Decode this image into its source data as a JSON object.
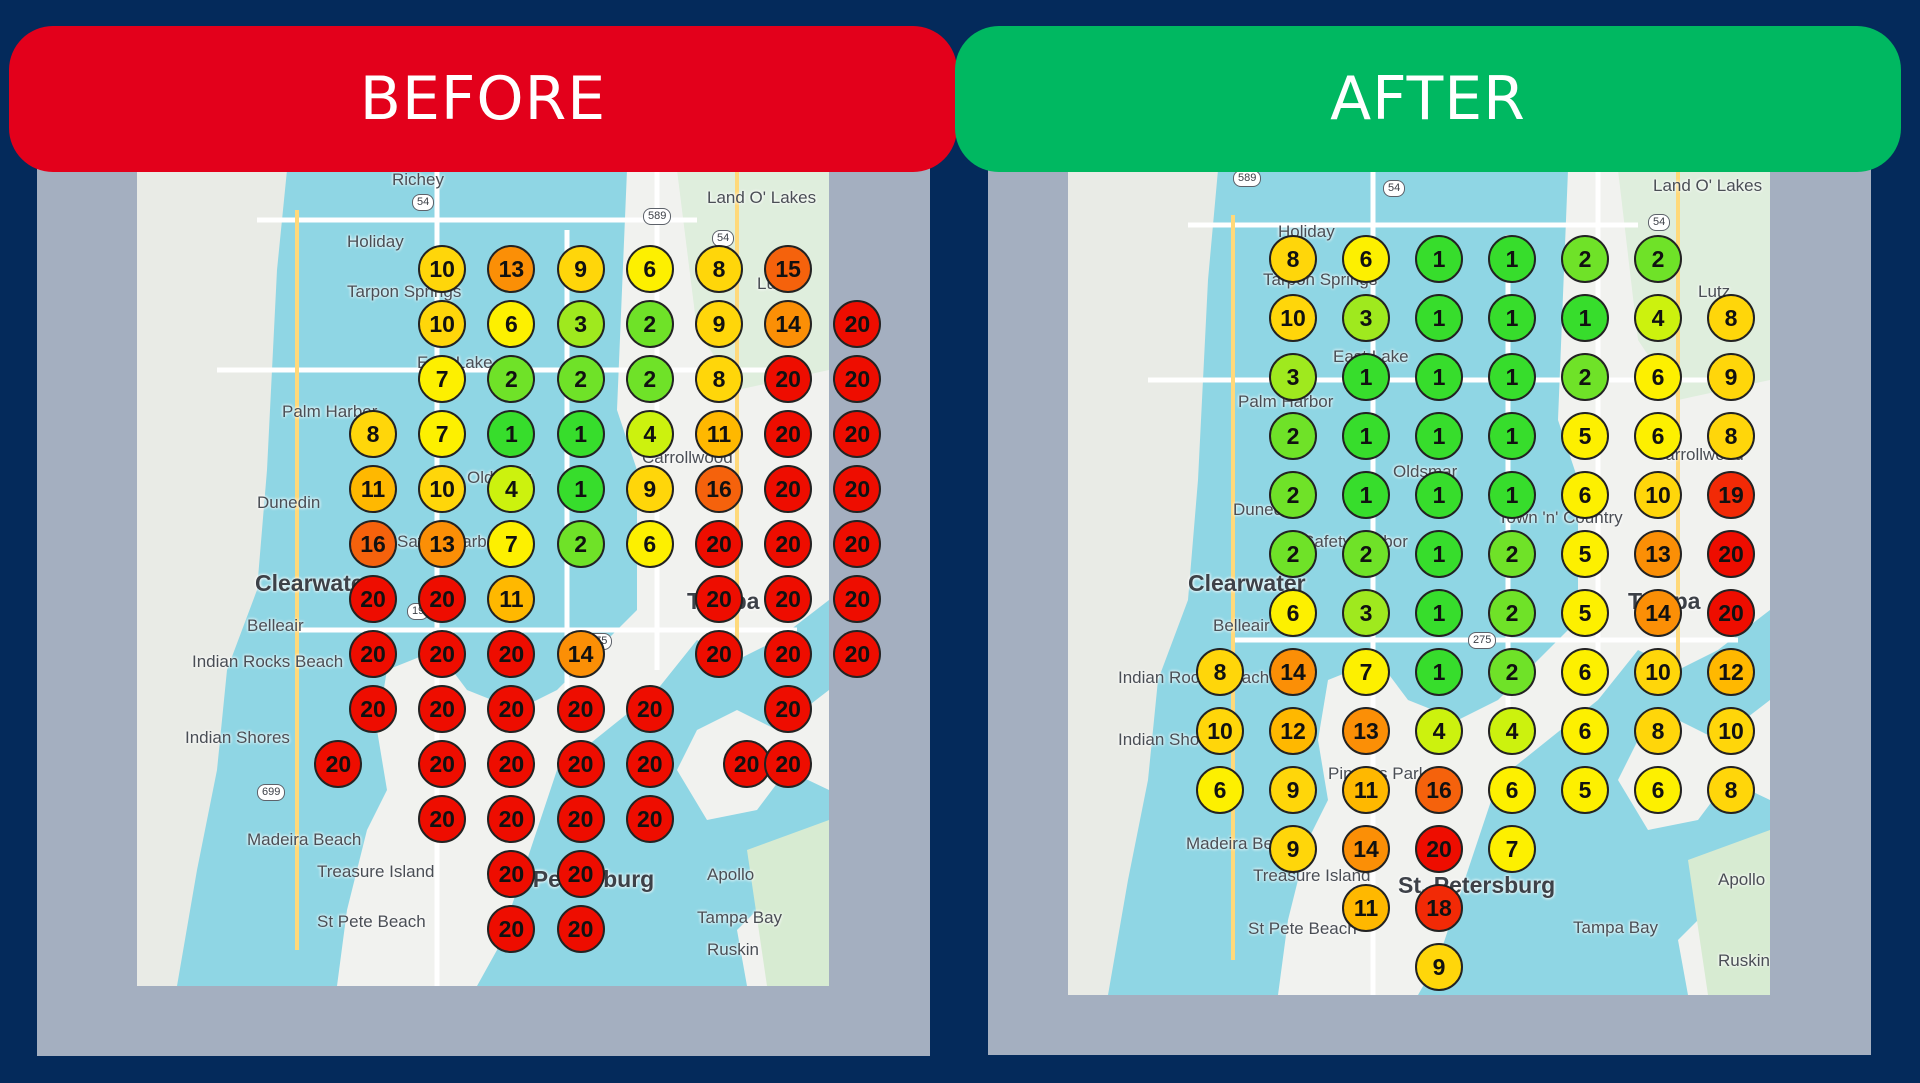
{
  "before": {
    "header": "BEFORE",
    "header_color": "#e3001b",
    "labels": [
      "Richey",
      "Land O' Lakes",
      "Holiday",
      "Tarpon Springs",
      "East Lake",
      "Palm Harbor",
      "Oldsmar",
      "Carrollwood",
      "Dunedin",
      "Safety Harbor",
      "Clearwater",
      "Tampa",
      "Belleair",
      "Indian Rocks Beach",
      "Indian Shores",
      "Madeira Beach",
      "Treasure Island",
      "St Pete Beach",
      "St. Petersburg",
      "Apollo",
      "Ruskin",
      "Tampa Bay",
      "Lutz"
    ],
    "road_badges": [
      "54",
      "589",
      "54",
      "19",
      "275",
      "699"
    ],
    "grid": [
      {
        "row": 0,
        "col": 1,
        "rank": 10
      },
      {
        "row": 0,
        "col": 2,
        "rank": 13
      },
      {
        "row": 0,
        "col": 3,
        "rank": 9
      },
      {
        "row": 0,
        "col": 4,
        "rank": 6
      },
      {
        "row": 0,
        "col": 5,
        "rank": 8
      },
      {
        "row": 0,
        "col": 6,
        "rank": 15
      },
      {
        "row": 1,
        "col": 1,
        "rank": 10
      },
      {
        "row": 1,
        "col": 2,
        "rank": 6
      },
      {
        "row": 1,
        "col": 3,
        "rank": 3
      },
      {
        "row": 1,
        "col": 4,
        "rank": 2
      },
      {
        "row": 1,
        "col": 5,
        "rank": 9
      },
      {
        "row": 1,
        "col": 6,
        "rank": 14
      },
      {
        "row": 1,
        "col": 7,
        "rank": 20
      },
      {
        "row": 2,
        "col": 1,
        "rank": 7
      },
      {
        "row": 2,
        "col": 2,
        "rank": 2
      },
      {
        "row": 2,
        "col": 3,
        "rank": 2
      },
      {
        "row": 2,
        "col": 4,
        "rank": 2
      },
      {
        "row": 2,
        "col": 5,
        "rank": 8
      },
      {
        "row": 2,
        "col": 6,
        "rank": 20
      },
      {
        "row": 2,
        "col": 7,
        "rank": 20
      },
      {
        "row": 3,
        "col": 0,
        "rank": 8
      },
      {
        "row": 3,
        "col": 1,
        "rank": 7
      },
      {
        "row": 3,
        "col": 2,
        "rank": 1
      },
      {
        "row": 3,
        "col": 3,
        "rank": 1
      },
      {
        "row": 3,
        "col": 4,
        "rank": 4
      },
      {
        "row": 3,
        "col": 5,
        "rank": 11
      },
      {
        "row": 3,
        "col": 6,
        "rank": 20
      },
      {
        "row": 3,
        "col": 7,
        "rank": 20
      },
      {
        "row": 4,
        "col": 0,
        "rank": 11
      },
      {
        "row": 4,
        "col": 1,
        "rank": 10
      },
      {
        "row": 4,
        "col": 2,
        "rank": 4
      },
      {
        "row": 4,
        "col": 3,
        "rank": 1
      },
      {
        "row": 4,
        "col": 4,
        "rank": 9
      },
      {
        "row": 4,
        "col": 5,
        "rank": 16
      },
      {
        "row": 4,
        "col": 6,
        "rank": 20
      },
      {
        "row": 4,
        "col": 7,
        "rank": 20
      },
      {
        "row": 5,
        "col": 0,
        "rank": 16
      },
      {
        "row": 5,
        "col": 1,
        "rank": 13
      },
      {
        "row": 5,
        "col": 2,
        "rank": 7
      },
      {
        "row": 5,
        "col": 3,
        "rank": 2
      },
      {
        "row": 5,
        "col": 4,
        "rank": 6
      },
      {
        "row": 5,
        "col": 5,
        "rank": 20
      },
      {
        "row": 5,
        "col": 6,
        "rank": 20
      },
      {
        "row": 5,
        "col": 7,
        "rank": 20
      },
      {
        "row": 6,
        "col": 0,
        "rank": 20
      },
      {
        "row": 6,
        "col": 1,
        "rank": 20
      },
      {
        "row": 6,
        "col": 2,
        "rank": 11
      },
      {
        "row": 6,
        "col": 5,
        "rank": 20
      },
      {
        "row": 6,
        "col": 6,
        "rank": 20
      },
      {
        "row": 6,
        "col": 7,
        "rank": 20
      },
      {
        "row": 7,
        "col": 0,
        "rank": 20
      },
      {
        "row": 7,
        "col": 1,
        "rank": 20
      },
      {
        "row": 7,
        "col": 2,
        "rank": 20
      },
      {
        "row": 7,
        "col": 3,
        "rank": 14
      },
      {
        "row": 7,
        "col": 5,
        "rank": 20
      },
      {
        "row": 7,
        "col": 6,
        "rank": 20
      },
      {
        "row": 7,
        "col": 7,
        "rank": 20
      },
      {
        "row": 8,
        "col": 0,
        "rank": 20
      },
      {
        "row": 8,
        "col": 1,
        "rank": 20
      },
      {
        "row": 8,
        "col": 2,
        "rank": 20
      },
      {
        "row": 8,
        "col": 3,
        "rank": 20
      },
      {
        "row": 8,
        "col": 4,
        "rank": 20
      },
      {
        "row": 8,
        "col": 6,
        "rank": 20
      },
      {
        "row": 9,
        "col": -0.5,
        "rank": 20
      },
      {
        "row": 9,
        "col": 1,
        "rank": 20
      },
      {
        "row": 9,
        "col": 2,
        "rank": 20
      },
      {
        "row": 9,
        "col": 3,
        "rank": 20
      },
      {
        "row": 9,
        "col": 4,
        "rank": 20
      },
      {
        "row": 9,
        "col": 5.4,
        "rank": 20
      },
      {
        "row": 9,
        "col": 6,
        "rank": 20
      },
      {
        "row": 10,
        "col": 1,
        "rank": 20
      },
      {
        "row": 10,
        "col": 2,
        "rank": 20
      },
      {
        "row": 10,
        "col": 3,
        "rank": 20
      },
      {
        "row": 10,
        "col": 4,
        "rank": 20
      },
      {
        "row": 11,
        "col": 2,
        "rank": 20
      },
      {
        "row": 11,
        "col": 3,
        "rank": 20
      },
      {
        "row": 12,
        "col": 2,
        "rank": 20
      },
      {
        "row": 12,
        "col": 3,
        "rank": 20
      }
    ]
  },
  "after": {
    "header": "AFTER",
    "header_color": "#00b861",
    "labels": [
      "Land O' Lakes",
      "Holiday",
      "Tarpon Springs",
      "East Lake",
      "Lutz",
      "Palm Harbor",
      "Carrollwood",
      "Oldsmar",
      "Dunedin",
      "Town 'n' Country",
      "Safety Harbor",
      "Clearwater",
      "Tampa",
      "Belleair",
      "Indian Rocks Beach",
      "Indian Shores",
      "Pinellas Park",
      "Madeira Beach",
      "Treasure Island",
      "St Pete Beach",
      "St. Petersburg",
      "Apollo",
      "Ruskin",
      "Tampa Bay"
    ],
    "road_badges": [
      "54",
      "54",
      "589",
      "275"
    ],
    "grid": [
      {
        "row": 0,
        "col": 0,
        "rank": 8
      },
      {
        "row": 0,
        "col": 1,
        "rank": 6
      },
      {
        "row": 0,
        "col": 2,
        "rank": 1
      },
      {
        "row": 0,
        "col": 3,
        "rank": 1
      },
      {
        "row": 0,
        "col": 4,
        "rank": 2
      },
      {
        "row": 0,
        "col": 5,
        "rank": 2
      },
      {
        "row": 1,
        "col": 0,
        "rank": 10
      },
      {
        "row": 1,
        "col": 1,
        "rank": 3
      },
      {
        "row": 1,
        "col": 2,
        "rank": 1
      },
      {
        "row": 1,
        "col": 3,
        "rank": 1
      },
      {
        "row": 1,
        "col": 4,
        "rank": 1
      },
      {
        "row": 1,
        "col": 5,
        "rank": 4
      },
      {
        "row": 1,
        "col": 6,
        "rank": 8
      },
      {
        "row": 2,
        "col": 0,
        "rank": 3
      },
      {
        "row": 2,
        "col": 1,
        "rank": 1
      },
      {
        "row": 2,
        "col": 2,
        "rank": 1
      },
      {
        "row": 2,
        "col": 3,
        "rank": 1
      },
      {
        "row": 2,
        "col": 4,
        "rank": 2
      },
      {
        "row": 2,
        "col": 5,
        "rank": 6
      },
      {
        "row": 2,
        "col": 6,
        "rank": 9
      },
      {
        "row": 3,
        "col": 0,
        "rank": 2
      },
      {
        "row": 3,
        "col": 1,
        "rank": 1
      },
      {
        "row": 3,
        "col": 2,
        "rank": 1
      },
      {
        "row": 3,
        "col": 3,
        "rank": 1
      },
      {
        "row": 3,
        "col": 4,
        "rank": 5
      },
      {
        "row": 3,
        "col": 5,
        "rank": 6
      },
      {
        "row": 3,
        "col": 6,
        "rank": 8
      },
      {
        "row": 4,
        "col": 0,
        "rank": 2
      },
      {
        "row": 4,
        "col": 1,
        "rank": 1
      },
      {
        "row": 4,
        "col": 2,
        "rank": 1
      },
      {
        "row": 4,
        "col": 3,
        "rank": 1
      },
      {
        "row": 4,
        "col": 4,
        "rank": 6
      },
      {
        "row": 4,
        "col": 5,
        "rank": 10
      },
      {
        "row": 4,
        "col": 6,
        "rank": 19
      },
      {
        "row": 5,
        "col": 0,
        "rank": 2
      },
      {
        "row": 5,
        "col": 1,
        "rank": 2
      },
      {
        "row": 5,
        "col": 2,
        "rank": 1
      },
      {
        "row": 5,
        "col": 3,
        "rank": 2
      },
      {
        "row": 5,
        "col": 4,
        "rank": 5
      },
      {
        "row": 5,
        "col": 5,
        "rank": 13
      },
      {
        "row": 5,
        "col": 6,
        "rank": 20
      },
      {
        "row": 6,
        "col": 0,
        "rank": 6
      },
      {
        "row": 6,
        "col": 1,
        "rank": 3
      },
      {
        "row": 6,
        "col": 2,
        "rank": 1
      },
      {
        "row": 6,
        "col": 3,
        "rank": 2
      },
      {
        "row": 6,
        "col": 4,
        "rank": 5
      },
      {
        "row": 6,
        "col": 5,
        "rank": 14
      },
      {
        "row": 6,
        "col": 6,
        "rank": 20
      },
      {
        "row": 7,
        "col": -1,
        "rank": 8
      },
      {
        "row": 7,
        "col": 0,
        "rank": 14
      },
      {
        "row": 7,
        "col": 1,
        "rank": 7
      },
      {
        "row": 7,
        "col": 2,
        "rank": 1
      },
      {
        "row": 7,
        "col": 3,
        "rank": 2
      },
      {
        "row": 7,
        "col": 4,
        "rank": 6
      },
      {
        "row": 7,
        "col": 5,
        "rank": 10
      },
      {
        "row": 7,
        "col": 6,
        "rank": 12
      },
      {
        "row": 8,
        "col": -1,
        "rank": 10
      },
      {
        "row": 8,
        "col": 0,
        "rank": 12
      },
      {
        "row": 8,
        "col": 1,
        "rank": 13
      },
      {
        "row": 8,
        "col": 2,
        "rank": 4
      },
      {
        "row": 8,
        "col": 3,
        "rank": 4
      },
      {
        "row": 8,
        "col": 4,
        "rank": 6
      },
      {
        "row": 8,
        "col": 5,
        "rank": 8
      },
      {
        "row": 8,
        "col": 6,
        "rank": 10
      },
      {
        "row": 9,
        "col": -1,
        "rank": 6
      },
      {
        "row": 9,
        "col": 0,
        "rank": 9
      },
      {
        "row": 9,
        "col": 1,
        "rank": 11
      },
      {
        "row": 9,
        "col": 2,
        "rank": 16
      },
      {
        "row": 9,
        "col": 3,
        "rank": 6
      },
      {
        "row": 9,
        "col": 4,
        "rank": 5
      },
      {
        "row": 9,
        "col": 5,
        "rank": 6
      },
      {
        "row": 9,
        "col": 6,
        "rank": 8
      },
      {
        "row": 10,
        "col": 0,
        "rank": 9
      },
      {
        "row": 10,
        "col": 1,
        "rank": 14
      },
      {
        "row": 10,
        "col": 2,
        "rank": 20
      },
      {
        "row": 10,
        "col": 3,
        "rank": 7
      },
      {
        "row": 11,
        "col": 1,
        "rank": 11
      },
      {
        "row": 11,
        "col": 2,
        "rank": 18
      },
      {
        "row": 12,
        "col": 2,
        "rank": 9
      }
    ]
  }
}
